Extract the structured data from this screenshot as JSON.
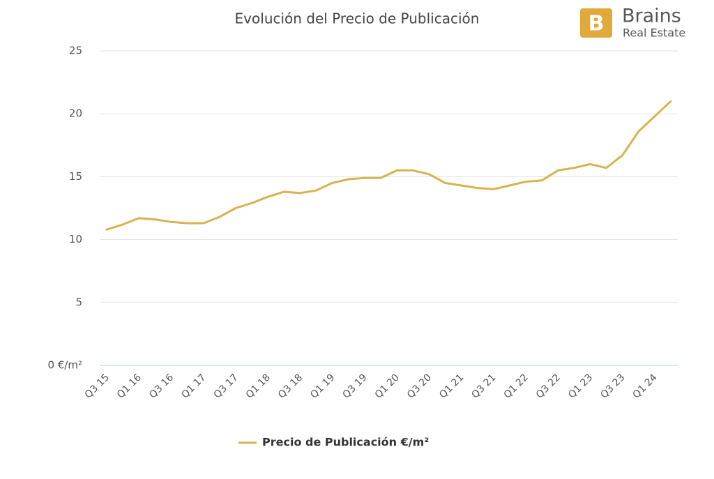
{
  "logo": {
    "name": "Brains",
    "tagline": "Real Estate"
  },
  "chart_data": {
    "type": "line",
    "title": "Evolución del Precio de Publicación",
    "categories": [
      "Q3 15",
      null,
      "Q1 16",
      null,
      "Q3 16",
      null,
      "Q1 17",
      null,
      "Q3 17",
      null,
      "Q1 18",
      null,
      "Q3 18",
      null,
      "Q1 19",
      null,
      "Q3 19",
      null,
      "Q1 20",
      null,
      "Q3 20",
      null,
      "Q1 21",
      null,
      "Q3 21",
      null,
      "Q1 22",
      null,
      "Q3 22",
      null,
      "Q1 23",
      null,
      "Q3 23",
      null,
      "Q1 24",
      null
    ],
    "series": [
      {
        "name": "Precio de Publicación €/m²",
        "color": "#d8b24e",
        "values": [
          10.8,
          11.2,
          11.7,
          11.6,
          11.4,
          11.3,
          11.3,
          11.8,
          12.5,
          12.9,
          13.4,
          13.8,
          13.7,
          13.9,
          14.5,
          14.8,
          14.9,
          14.9,
          15.5,
          15.5,
          15.2,
          14.5,
          14.3,
          14.1,
          14.0,
          14.3,
          14.6,
          14.7,
          15.5,
          15.7,
          16.0,
          15.7,
          16.7,
          18.6,
          19.8,
          21.0
        ]
      }
    ],
    "ylim": [
      0,
      25
    ],
    "yticks": [
      {
        "value": 0,
        "label": "0 €/m²"
      },
      5,
      10,
      15,
      20,
      25
    ],
    "grid": true,
    "legend": "bottom"
  }
}
